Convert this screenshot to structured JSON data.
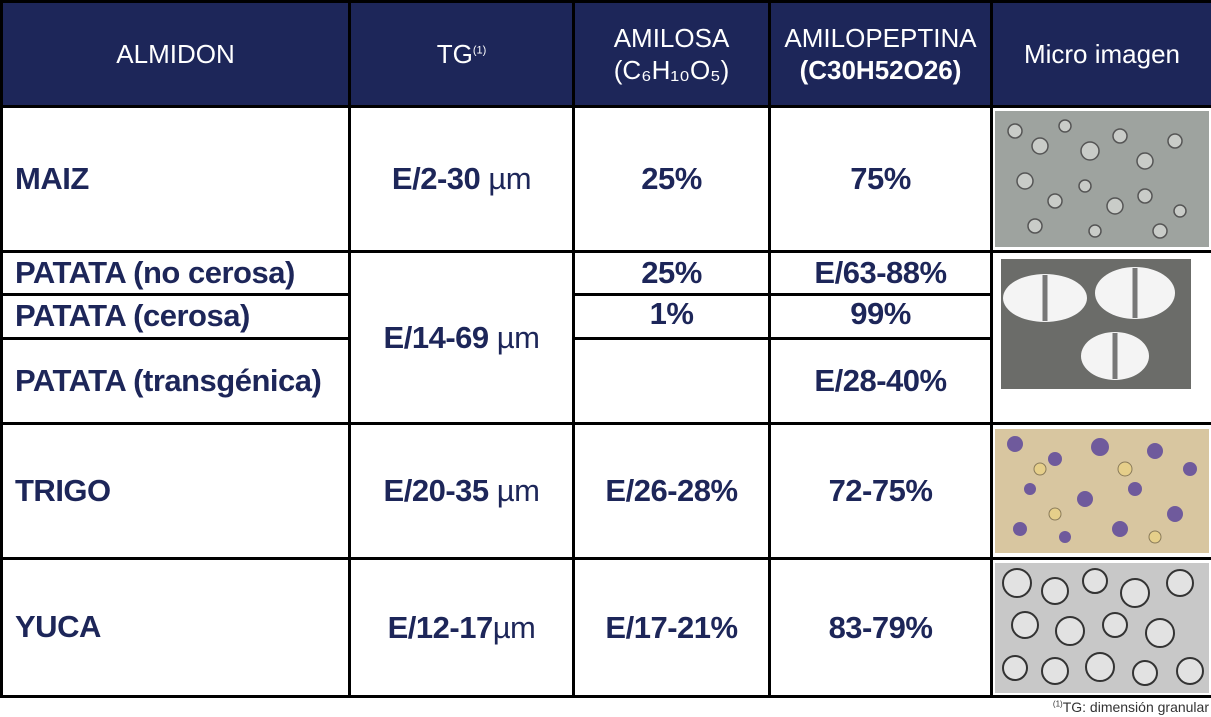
{
  "header": {
    "almidon": "ALMIDON",
    "tg": "TG",
    "tg_note": "(1)",
    "amilosa": "AMILOSA",
    "amilosa_formula": "(C₆H₁₀O₅)",
    "amilopeptina": "AMILOPEPTINA",
    "amilopeptina_formula": "(C30H52O26)",
    "micro": "Micro imagen"
  },
  "rows": [
    {
      "almidon": "MAIZ",
      "tg": {
        "value": "E/2-30",
        "unit": "µm"
      },
      "amilosa": "25%",
      "amilopeptina": "75%"
    },
    {
      "almidon": [
        "PATATA (no cerosa)",
        "PATATA (cerosa)",
        "PATATA (transgénica)"
      ],
      "tg": {
        "value": "E/14-69",
        "unit": "µm"
      },
      "amilosa": [
        "25%",
        "1%"
      ],
      "amilopeptina": [
        "E/63-88%",
        "99%",
        "E/28-40%"
      ]
    },
    {
      "almidon": "TRIGO",
      "tg": {
        "value": "E/20-35",
        "unit": "µm"
      },
      "amilosa": "E/26-28%",
      "amilopeptina": "72-75%"
    },
    {
      "almidon": "YUCA",
      "tg": {
        "value": "E/12-17",
        "unit": "µm"
      },
      "amilosa": "E/17-21%",
      "amilopeptina": "83-79%"
    }
  ],
  "footnote": {
    "mark": "(1)",
    "text": "TG: dimensión granular"
  }
}
